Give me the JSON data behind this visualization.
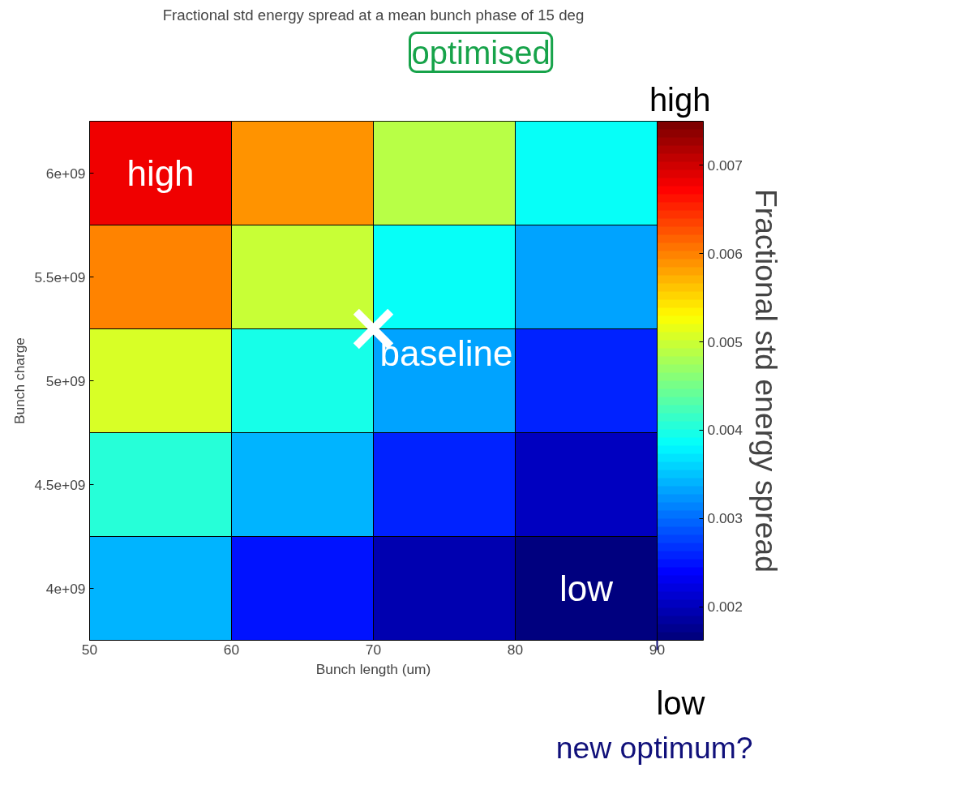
{
  "chart_data": {
    "type": "heatmap",
    "title": "Fractional std energy spread at a mean bunch phase of 15 deg",
    "xlabel": "Bunch length (um)",
    "ylabel": "Bunch charge",
    "clabel": "Fractional std energy spread",
    "x": [
      55,
      65,
      75,
      85
    ],
    "xlim": [
      50,
      90
    ],
    "xticks": [
      50,
      60,
      70,
      80,
      90
    ],
    "y_categories": [
      "6e+09",
      "5.5e+09",
      "5e+09",
      "4.5e+09",
      "4e+09"
    ],
    "cells": [
      [
        0.0068,
        0.00585,
        0.00486,
        0.00391
      ],
      [
        0.006,
        0.00497,
        0.0039,
        0.0033
      ],
      [
        0.00503,
        0.00397,
        0.0033,
        0.00262
      ],
      [
        0.00403,
        0.00338,
        0.0026,
        0.00203
      ],
      [
        0.0034,
        0.00253,
        0.00197,
        0.00165
      ]
    ],
    "clim": [
      0.00162,
      0.0075
    ],
    "cticks": [
      0.002,
      0.003,
      0.004,
      0.005,
      0.006,
      0.007
    ],
    "annotations": [
      "optimised",
      "high",
      "baseline",
      "low",
      "new optimum?",
      "high",
      "low"
    ]
  }
}
